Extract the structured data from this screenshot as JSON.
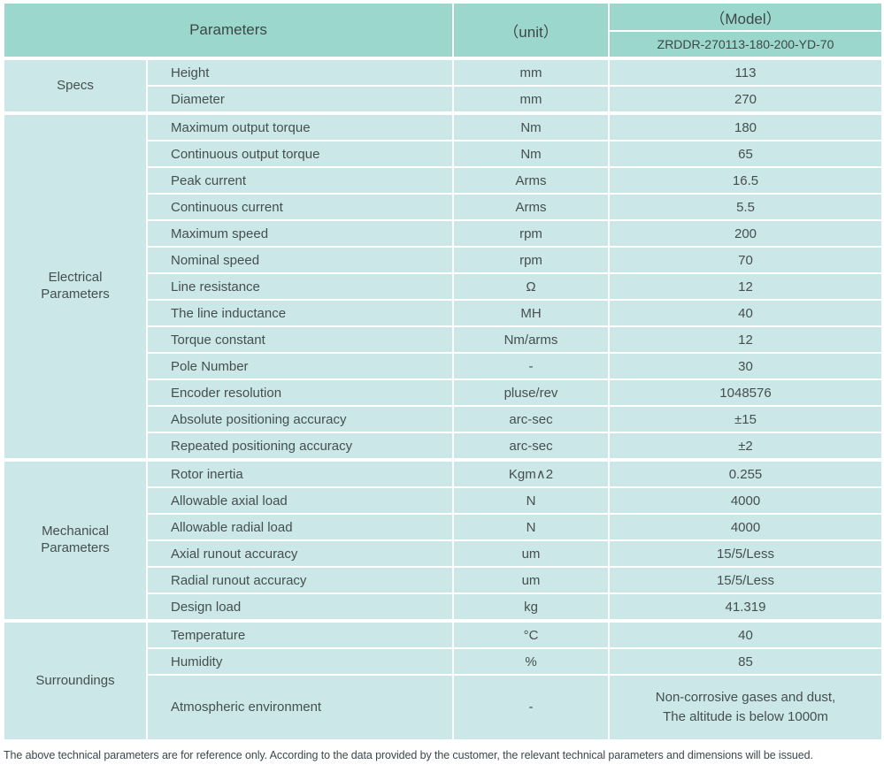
{
  "colors": {
    "header_bg": "#9cd7ce",
    "body_bg": "#cbe7e8",
    "border": "#ffffff",
    "text": "#454f52"
  },
  "header": {
    "parameters_label": "Parameters",
    "unit_label": "（unit）",
    "model_label": "（Model）",
    "model_value": "ZRDDR-270113-180-200-YD-70"
  },
  "groups": [
    {
      "id": "specs",
      "name": "Specs",
      "rows": [
        {
          "param": "Height",
          "unit": "mm",
          "value": "113"
        },
        {
          "param": "Diameter",
          "unit": "mm",
          "value": "270"
        }
      ]
    },
    {
      "id": "electrical",
      "name": "Electrical\nParameters",
      "rows": [
        {
          "param": "Maximum output torque",
          "unit": "Nm",
          "value": "180"
        },
        {
          "param": "Continuous output torque",
          "unit": "Nm",
          "value": "65"
        },
        {
          "param": "Peak current",
          "unit": "Arms",
          "value": "16.5"
        },
        {
          "param": "Continuous current",
          "unit": "Arms",
          "value": "5.5"
        },
        {
          "param": "Maximum speed",
          "unit": "rpm",
          "value": "200"
        },
        {
          "param": "Nominal speed",
          "unit": "rpm",
          "value": "70"
        },
        {
          "param": "Line resistance",
          "unit": "Ω",
          "value": "12"
        },
        {
          "param": "The line inductance",
          "unit": "MH",
          "value": "40"
        },
        {
          "param": "Torque constant",
          "unit": "Nm/arms",
          "value": "12"
        },
        {
          "param": "Pole Number",
          "unit": "-",
          "value": "30"
        },
        {
          "param": "Encoder resolution",
          "unit": "pluse/rev",
          "value": "1048576"
        },
        {
          "param": "Absolute positioning accuracy",
          "unit": "arc-sec",
          "value": "±15"
        },
        {
          "param": "Repeated positioning accuracy",
          "unit": "arc-sec",
          "value": "±2"
        }
      ]
    },
    {
      "id": "mechanical",
      "name": "Mechanical\nParameters",
      "rows": [
        {
          "param": "Rotor inertia",
          "unit": "Kgm∧2",
          "value": "0.255"
        },
        {
          "param": "Allowable axial load",
          "unit": "N",
          "value": "4000"
        },
        {
          "param": "Allowable radial load",
          "unit": "N",
          "value": "4000"
        },
        {
          "param": "Axial runout accuracy",
          "unit": "um",
          "value": "15/5/Less"
        },
        {
          "param": "Radial runout accuracy",
          "unit": "um",
          "value": "15/5/Less"
        },
        {
          "param": "Design load",
          "unit": "kg",
          "value": "41.319"
        }
      ]
    },
    {
      "id": "surroundings",
      "name": "Surroundings",
      "rows": [
        {
          "param": "Temperature",
          "unit": "°C",
          "value": "40"
        },
        {
          "param": "Humidity",
          "unit": "%",
          "value": "85"
        },
        {
          "param": "Atmospheric environment",
          "unit": "-",
          "value": "Non-corrosive gases and dust,\nThe altitude is below 1000m",
          "tall": true
        }
      ]
    }
  ],
  "footer_note": "The above technical parameters are for reference only. According to the data provided by the customer, the relevant technical parameters and dimensions will be issued."
}
